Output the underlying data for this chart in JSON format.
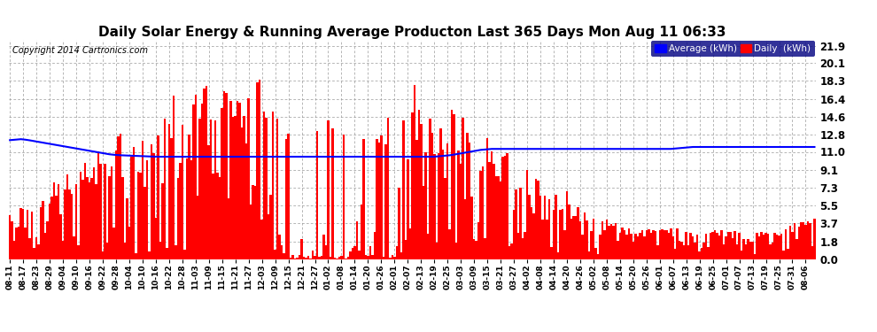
{
  "title": "Daily Solar Energy & Running Average Producton Last 365 Days Mon Aug 11 06:33",
  "copyright_text": "Copyright 2014 Cartronics.com",
  "bar_color": "#ff0000",
  "avg_line_color": "#0000ff",
  "background_color": "#ffffff",
  "plot_bg_color": "#ffffff",
  "grid_color": "#999999",
  "yticks": [
    0.0,
    1.8,
    3.7,
    5.5,
    7.3,
    9.1,
    11.0,
    12.8,
    14.6,
    16.4,
    18.3,
    20.1,
    21.9
  ],
  "ylim": [
    0.0,
    22.5
  ],
  "legend_labels": [
    "Average (kWh)",
    "Daily  (kWh)"
  ],
  "legend_colors": [
    "#0000ff",
    "#ff0000"
  ],
  "n_bars": 365,
  "x_tick_labels": [
    "08-11",
    "08-17",
    "08-23",
    "08-29",
    "09-04",
    "09-10",
    "09-16",
    "09-22",
    "09-28",
    "10-04",
    "10-10",
    "10-16",
    "10-22",
    "10-28",
    "11-03",
    "11-09",
    "11-15",
    "11-21",
    "11-27",
    "12-03",
    "12-09",
    "12-15",
    "12-21",
    "12-27",
    "01-02",
    "01-08",
    "01-14",
    "01-20",
    "01-26",
    "02-01",
    "02-07",
    "02-13",
    "02-19",
    "02-25",
    "03-03",
    "03-09",
    "03-15",
    "03-21",
    "03-27",
    "04-02",
    "04-08",
    "04-14",
    "04-20",
    "04-26",
    "05-02",
    "05-08",
    "05-14",
    "05-20",
    "05-26",
    "06-01",
    "06-07",
    "06-13",
    "06-19",
    "06-25",
    "07-01",
    "07-07",
    "07-13",
    "07-19",
    "07-25",
    "07-31",
    "08-06"
  ],
  "avg_values": [
    12.2,
    12.22,
    12.24,
    12.26,
    12.28,
    12.3,
    12.28,
    12.25,
    12.22,
    12.18,
    12.14,
    12.1,
    12.06,
    12.02,
    11.98,
    11.94,
    11.9,
    11.86,
    11.82,
    11.78,
    11.74,
    11.7,
    11.66,
    11.62,
    11.58,
    11.54,
    11.5,
    11.46,
    11.42,
    11.38,
    11.34,
    11.3,
    11.26,
    11.22,
    11.18,
    11.14,
    11.1,
    11.06,
    11.02,
    10.98,
    10.94,
    10.9,
    10.86,
    10.82,
    10.78,
    10.75,
    10.72,
    10.7,
    10.68,
    10.66,
    10.65,
    10.64,
    10.63,
    10.62,
    10.61,
    10.6,
    10.59,
    10.58,
    10.57,
    10.56,
    10.55,
    10.54,
    10.53,
    10.52,
    10.51,
    10.5,
    10.5,
    10.5,
    10.5,
    10.5,
    10.5,
    10.5,
    10.5,
    10.5,
    10.5,
    10.5,
    10.5,
    10.5,
    10.5,
    10.5,
    10.5,
    10.5,
    10.5,
    10.5,
    10.5,
    10.5,
    10.5,
    10.5,
    10.5,
    10.5,
    10.5,
    10.5,
    10.5,
    10.5,
    10.5,
    10.5,
    10.5,
    10.5,
    10.5,
    10.5,
    10.5,
    10.5,
    10.5,
    10.5,
    10.5,
    10.5,
    10.5,
    10.5,
    10.5,
    10.5,
    10.5,
    10.5,
    10.5,
    10.5,
    10.5,
    10.5,
    10.5,
    10.5,
    10.5,
    10.5,
    10.5,
    10.5,
    10.5,
    10.5,
    10.5,
    10.5,
    10.5,
    10.5,
    10.5,
    10.5,
    10.5,
    10.5,
    10.5,
    10.5,
    10.5,
    10.5,
    10.5,
    10.5,
    10.5,
    10.5,
    10.5,
    10.5,
    10.5,
    10.5,
    10.5,
    10.5,
    10.5,
    10.5,
    10.5,
    10.5,
    10.5,
    10.5,
    10.5,
    10.5,
    10.5,
    10.5,
    10.5,
    10.5,
    10.5,
    10.5,
    10.5,
    10.5,
    10.5,
    10.5,
    10.5,
    10.5,
    10.5,
    10.5,
    10.5,
    10.5,
    10.5,
    10.5,
    10.5,
    10.5,
    10.5,
    10.5,
    10.5,
    10.5,
    10.5,
    10.5,
    10.5,
    10.5,
    10.5,
    10.5,
    10.5,
    10.5,
    10.5,
    10.5,
    10.5,
    10.5,
    10.5,
    10.5,
    10.5,
    10.52,
    10.54,
    10.56,
    10.58,
    10.6,
    10.62,
    10.65,
    10.68,
    10.72,
    10.76,
    10.8,
    10.84,
    10.88,
    10.92,
    10.96,
    11.0,
    11.04,
    11.08,
    11.12,
    11.16,
    11.2,
    11.22,
    11.24,
    11.26,
    11.28,
    11.3,
    11.3,
    11.3,
    11.3,
    11.3,
    11.3,
    11.3,
    11.3,
    11.3,
    11.3,
    11.3,
    11.3,
    11.3,
    11.3,
    11.3,
    11.3,
    11.3,
    11.3,
    11.3,
    11.3,
    11.3,
    11.3,
    11.3,
    11.3,
    11.3,
    11.3,
    11.3,
    11.3,
    11.3,
    11.3,
    11.3,
    11.3,
    11.3,
    11.3,
    11.3,
    11.3,
    11.3,
    11.3,
    11.3,
    11.3,
    11.3,
    11.3,
    11.3,
    11.3,
    11.3,
    11.3,
    11.3,
    11.3,
    11.3,
    11.3,
    11.3,
    11.3,
    11.3,
    11.3,
    11.3,
    11.3,
    11.3,
    11.3,
    11.3,
    11.3,
    11.3,
    11.3,
    11.3,
    11.3,
    11.3,
    11.3,
    11.3,
    11.3,
    11.3,
    11.3,
    11.3,
    11.3,
    11.3,
    11.3,
    11.3,
    11.3,
    11.3,
    11.3,
    11.3,
    11.3,
    11.3,
    11.3,
    11.32,
    11.34,
    11.36,
    11.38,
    11.4,
    11.42,
    11.44,
    11.46,
    11.48,
    11.5,
    11.5,
    11.5,
    11.5,
    11.5,
    11.5,
    11.5,
    11.5,
    11.5,
    11.5,
    11.5,
    11.5,
    11.5,
    11.5,
    11.5,
    11.5,
    11.5,
    11.5,
    11.5,
    11.5,
    11.5,
    11.5,
    11.5,
    11.5,
    11.5,
    11.5,
    11.5,
    11.5,
    11.5,
    11.5,
    11.5,
    11.5,
    11.5,
    11.5,
    11.5,
    11.5,
    11.5,
    11.5,
    11.5,
    11.5,
    11.5,
    11.5,
    11.5,
    11.5,
    11.5,
    11.5,
    11.5,
    11.5,
    11.5,
    11.5,
    11.5,
    11.5,
    11.5,
    11.5,
    11.5,
    11.5,
    11.5
  ]
}
